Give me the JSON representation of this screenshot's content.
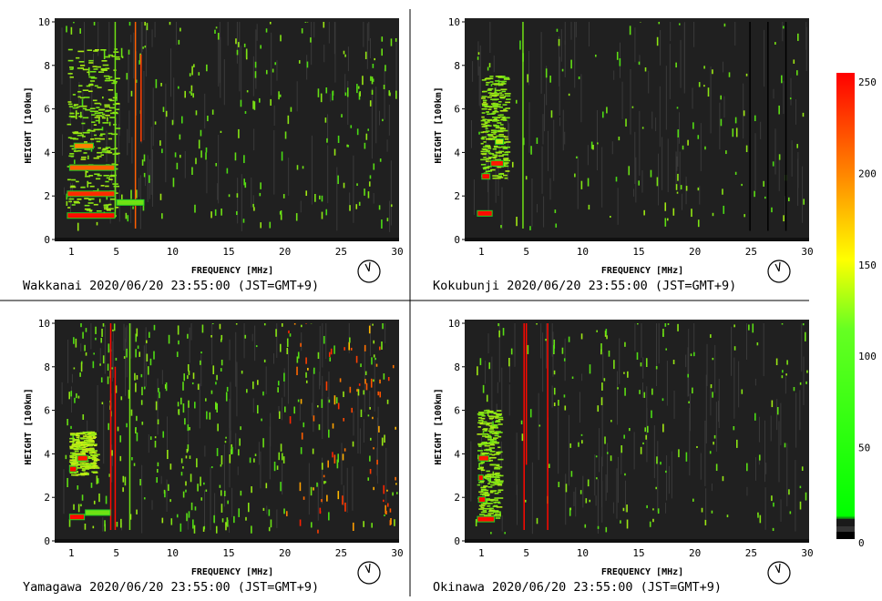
{
  "chart_data": [
    {
      "type": "heatmap",
      "station": "Wakkanai",
      "caption": "Wakkanai 2020/06/20 23:55:00 (JST=GMT+9)",
      "xlabel": "FREQUENCY [MHz]",
      "ylabel": "HEIGHT [100km]",
      "xlim": [
        0,
        30
      ],
      "ylim": [
        0,
        10
      ],
      "x_ticks": [
        "1",
        "5",
        "10",
        "15",
        "20",
        "25",
        "30"
      ],
      "y_ticks": [
        "0",
        "2",
        "4",
        "6",
        "8",
        "10"
      ],
      "noise_level": 0.55,
      "red_cutoff_mhz": 0,
      "traces": [
        {
          "y": 1.1,
          "x": [
            0.6,
            4.9
          ],
          "level": 250
        },
        {
          "y": 2.1,
          "x": [
            0.6,
            4.9
          ],
          "level": 230
        },
        {
          "y": 3.3,
          "x": [
            0.8,
            4.9
          ],
          "level": 200
        },
        {
          "y": 4.3,
          "x": [
            1.2,
            3.0
          ],
          "level": 180
        },
        {
          "y": 1.7,
          "x": [
            5.0,
            7.5
          ],
          "level": 90
        }
      ],
      "echo_regions": [
        {
          "x": [
            0.6,
            5.0
          ],
          "y": [
            1.0,
            8.8
          ],
          "level": 90
        }
      ],
      "vertical_lines": [
        {
          "x": 4.9,
          "y": [
            1.0,
            10.0
          ],
          "level": 90
        },
        {
          "x": 6.7,
          "y": [
            0.5,
            10.0
          ],
          "level": 200
        },
        {
          "x": 7.2,
          "y": [
            4.5,
            8.5
          ],
          "level": 220
        }
      ]
    },
    {
      "type": "heatmap",
      "station": "Kokubunji",
      "caption": "Kokubunji 2020/06/20 23:55:00 (JST=GMT+9)",
      "xlabel": "FREQUENCY [MHz]",
      "ylabel": "HEIGHT [100km]",
      "xlim": [
        0,
        30
      ],
      "ylim": [
        0,
        10
      ],
      "x_ticks": [
        "1",
        "5",
        "10",
        "15",
        "20",
        "25",
        "30"
      ],
      "y_ticks": [
        "0",
        "2",
        "4",
        "6",
        "8",
        "10"
      ],
      "noise_level": 0.3,
      "red_cutoff_mhz": 0,
      "traces": [
        {
          "y": 1.2,
          "x": [
            0.6,
            2.0
          ],
          "level": 250
        },
        {
          "y": 2.9,
          "x": [
            1.0,
            1.8
          ],
          "level": 250
        },
        {
          "y": 3.5,
          "x": [
            1.8,
            3.0
          ],
          "level": 240
        },
        {
          "y": 4.5,
          "x": [
            2.2,
            3.0
          ],
          "level": 120
        }
      ],
      "echo_regions": [
        {
          "x": [
            0.9,
            3.2
          ],
          "y": [
            2.8,
            7.5
          ],
          "level": 90
        }
      ],
      "vertical_lines": [
        {
          "x": 4.7,
          "y": [
            0.5,
            10.0
          ],
          "level": 90
        },
        {
          "x": 24.9,
          "y": [
            0.4,
            10.0
          ],
          "level": 10
        },
        {
          "x": 26.5,
          "y": [
            0.4,
            10.0
          ],
          "level": 10
        },
        {
          "x": 28.1,
          "y": [
            0.4,
            10.0
          ],
          "level": 10
        }
      ]
    },
    {
      "type": "heatmap",
      "station": "Yamagawa",
      "caption": "Yamagawa 2020/06/20 23:55:00 (JST=GMT+9)",
      "xlabel": "FREQUENCY [MHz]",
      "ylabel": "HEIGHT [100km]",
      "xlim": [
        0,
        30
      ],
      "ylim": [
        0,
        10
      ],
      "x_ticks": [
        "1",
        "5",
        "10",
        "15",
        "20",
        "25",
        "30"
      ],
      "y_ticks": [
        "0",
        "2",
        "4",
        "6",
        "8",
        "10"
      ],
      "noise_level": 1.0,
      "red_cutoff_mhz": 20,
      "traces": [
        {
          "y": 1.1,
          "x": [
            0.8,
            2.2
          ],
          "level": 250
        },
        {
          "y": 3.3,
          "x": [
            0.8,
            1.5
          ],
          "level": 250
        },
        {
          "y": 3.8,
          "x": [
            1.5,
            2.5
          ],
          "level": 240
        },
        {
          "y": 1.3,
          "x": [
            2.2,
            4.5
          ],
          "level": 90
        }
      ],
      "echo_regions": [
        {
          "x": [
            0.8,
            3.0
          ],
          "y": [
            3.0,
            5.0
          ],
          "level": 100
        }
      ],
      "vertical_lines": [
        {
          "x": 4.5,
          "y": [
            0.5,
            10.0
          ],
          "level": 250
        },
        {
          "x": 4.9,
          "y": [
            0.5,
            8.0
          ],
          "level": 250
        },
        {
          "x": 6.2,
          "y": [
            0.5,
            10.0
          ],
          "level": 90
        }
      ]
    },
    {
      "type": "heatmap",
      "station": "Okinawa",
      "caption": "Okinawa 2020/06/20 23:55:00 (JST=GMT+9)",
      "xlabel": "FREQUENCY [MHz]",
      "ylabel": "HEIGHT [100km]",
      "xlim": [
        0,
        30
      ],
      "ylim": [
        0,
        10
      ],
      "x_ticks": [
        "1",
        "5",
        "10",
        "15",
        "20",
        "25",
        "30"
      ],
      "y_ticks": [
        "0",
        "2",
        "4",
        "6",
        "8",
        "10"
      ],
      "noise_level": 0.45,
      "red_cutoff_mhz": 0,
      "traces": [
        {
          "y": 1.0,
          "x": [
            0.6,
            2.2
          ],
          "level": 250
        },
        {
          "y": 1.9,
          "x": [
            0.7,
            1.4
          ],
          "level": 250
        },
        {
          "y": 2.9,
          "x": [
            0.7,
            1.2
          ],
          "level": 250
        },
        {
          "y": 3.8,
          "x": [
            0.7,
            1.7
          ],
          "level": 240
        }
      ],
      "echo_regions": [
        {
          "x": [
            0.6,
            2.5
          ],
          "y": [
            1.0,
            6.0
          ],
          "level": 90
        }
      ],
      "vertical_lines": [
        {
          "x": 4.8,
          "y": [
            0.5,
            10.0
          ],
          "level": 250
        },
        {
          "x": 5.0,
          "y": [
            3.5,
            10.0
          ],
          "level": 250
        },
        {
          "x": 6.9,
          "y": [
            0.5,
            10.0
          ],
          "level": 250
        }
      ]
    }
  ],
  "colorbar": {
    "min": 0,
    "max": 255,
    "ticks": [
      "0",
      "50",
      "100",
      "150",
      "200",
      "250"
    ],
    "colors": [
      "#000000",
      "#00ff00",
      "#ffff00",
      "#ff0000"
    ]
  },
  "colors": {
    "background": "#202020",
    "low_band": "#101010",
    "echo_green": "#33ee22",
    "echo_red": "#ff2200"
  }
}
